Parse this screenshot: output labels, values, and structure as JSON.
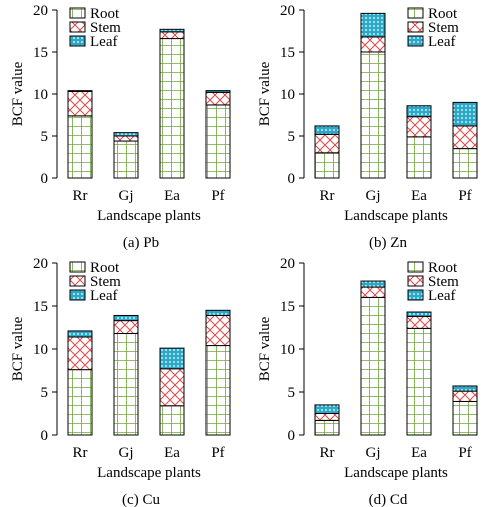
{
  "colors": {
    "root_grid": "#6fa53a",
    "stem_cross": "#e04848",
    "leaf_fill": "#2aa9c9",
    "outline": "#000000"
  },
  "legend": [
    "Root",
    "Stem",
    "Leaf"
  ],
  "chart_data": [
    {
      "type": "bar",
      "stacked": true,
      "caption": "(a)  Pb",
      "xlabel": "Landscape plants",
      "ylabel": "BCF value",
      "categories": [
        "Rr",
        "Gj",
        "Ea",
        "Pf"
      ],
      "ylim": [
        0,
        20
      ],
      "yticks": [
        "0",
        "5",
        "10",
        "15",
        "20"
      ],
      "series": [
        {
          "name": "Root",
          "values": [
            7.4,
            4.4,
            16.6,
            8.7
          ]
        },
        {
          "name": "Stem",
          "values": [
            2.9,
            0.6,
            0.8,
            1.5
          ]
        },
        {
          "name": "Leaf",
          "values": [
            0.1,
            0.4,
            0.3,
            0.2
          ]
        }
      ]
    },
    {
      "type": "bar",
      "stacked": true,
      "caption": "(b) Zn",
      "xlabel": "Landscape plants",
      "ylabel": "BCF value",
      "categories": [
        "Rr",
        "Gj",
        "Ea",
        "Pf"
      ],
      "ylim": [
        0,
        20
      ],
      "yticks": [
        "0",
        "5",
        "10",
        "15",
        "20"
      ],
      "series": [
        {
          "name": "Root",
          "values": [
            3.0,
            15.0,
            4.9,
            3.5
          ]
        },
        {
          "name": "Stem",
          "values": [
            2.2,
            1.8,
            2.4,
            2.7
          ]
        },
        {
          "name": "Leaf",
          "values": [
            1.0,
            2.8,
            1.3,
            2.8
          ]
        }
      ]
    },
    {
      "type": "bar",
      "stacked": true,
      "caption": "(c) Cu",
      "xlabel": "Landscape plants",
      "ylabel": "BCF value",
      "categories": [
        "Rr",
        "Gj",
        "Ea",
        "Pf"
      ],
      "ylim": [
        0,
        20
      ],
      "yticks": [
        "0",
        "5",
        "10",
        "15",
        "20"
      ],
      "series": [
        {
          "name": "Root",
          "values": [
            7.6,
            11.8,
            3.4,
            10.4
          ]
        },
        {
          "name": "Stem",
          "values": [
            3.8,
            1.5,
            4.3,
            3.5
          ]
        },
        {
          "name": "Leaf",
          "values": [
            0.7,
            0.6,
            2.4,
            0.6
          ]
        }
      ]
    },
    {
      "type": "bar",
      "stacked": true,
      "caption": "(d) Cd",
      "xlabel": "Landscape plants",
      "ylabel": "BCF value",
      "categories": [
        "Rr",
        "Gj",
        "Ea",
        "Pf"
      ],
      "ylim": [
        0,
        20
      ],
      "yticks": [
        "0",
        "5",
        "10",
        "15",
        "20"
      ],
      "series": [
        {
          "name": "Root",
          "values": [
            1.7,
            16.0,
            12.4,
            3.9
          ]
        },
        {
          "name": "Stem",
          "values": [
            0.8,
            1.2,
            1.4,
            1.2
          ]
        },
        {
          "name": "Leaf",
          "values": [
            1.0,
            0.7,
            0.5,
            0.6
          ]
        }
      ]
    }
  ]
}
